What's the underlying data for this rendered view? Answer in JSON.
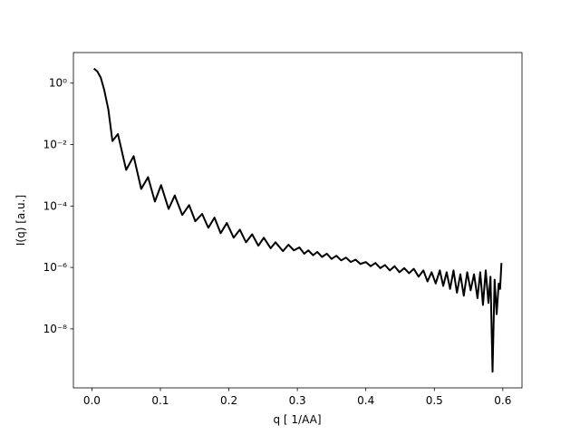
{
  "chart_data": {
    "type": "line",
    "xlabel": "q [ 1/AA]",
    "ylabel": "I(q) [a.u.]",
    "yscale": "log",
    "xlim": [
      -0.027,
      0.628
    ],
    "ylim": [
      1.2e-10,
      9.9
    ],
    "xticks": [
      {
        "value": 0,
        "label": "0.0"
      },
      0.1,
      0.2,
      0.3,
      0.4,
      0.5,
      0.6
    ],
    "yticks": [
      {
        "value": 1,
        "label": "10⁰"
      },
      {
        "value": 0.01,
        "label": "10⁻²"
      },
      {
        "value": 0.0001,
        "label": "10⁻⁴"
      },
      {
        "value": 1e-06,
        "label": "10⁻⁶"
      },
      {
        "value": 1e-08,
        "label": "10⁻⁸"
      }
    ],
    "color": "#000000",
    "x": [
      0.003,
      0.008,
      0.013,
      0.018,
      0.024,
      0.03,
      0.038,
      0.05,
      0.061,
      0.072,
      0.082,
      0.092,
      0.101,
      0.112,
      0.121,
      0.132,
      0.142,
      0.151,
      0.161,
      0.17,
      0.179,
      0.188,
      0.197,
      0.207,
      0.216,
      0.225,
      0.234,
      0.243,
      0.251,
      0.261,
      0.268,
      0.279,
      0.287,
      0.295,
      0.303,
      0.31,
      0.316,
      0.323,
      0.329,
      0.336,
      0.343,
      0.35,
      0.357,
      0.364,
      0.371,
      0.378,
      0.385,
      0.392,
      0.4,
      0.407,
      0.414,
      0.421,
      0.428,
      0.435,
      0.442,
      0.449,
      0.456,
      0.463,
      0.47,
      0.477,
      0.484,
      0.49,
      0.496,
      0.502,
      0.508,
      0.513,
      0.518,
      0.523,
      0.528,
      0.533,
      0.538,
      0.543,
      0.548,
      0.553,
      0.558,
      0.563,
      0.567,
      0.571,
      0.575,
      0.579,
      0.582,
      0.585,
      0.588,
      0.591,
      0.594,
      0.596,
      0.598
    ],
    "values": [
      3.0,
      2.4,
      1.5,
      0.6,
      0.14,
      0.013,
      0.022,
      0.0015,
      0.0042,
      0.00036,
      0.00087,
      0.00014,
      0.00048,
      8e-05,
      0.00022,
      5.1e-05,
      0.000107,
      3.2e-05,
      5.5e-05,
      1.95e-05,
      4.2e-05,
      1.3e-05,
      2.8e-05,
      9.3e-06,
      1.7e-05,
      6.6e-06,
      1.2e-05,
      5.1e-06,
      9.3e-06,
      4.2e-06,
      6.6e-06,
      3.4e-06,
      5.5e-06,
      3.6e-06,
      4.5e-06,
      2.8e-06,
      3.6e-06,
      2.5e-06,
      3.2e-06,
      2.2e-06,
      2.8e-06,
      1.9e-06,
      2.4e-06,
      1.7e-06,
      2.1e-06,
      1.5e-06,
      1.8e-06,
      1.3e-06,
      1.5e-06,
      1.1e-06,
      1.4e-06,
      9.5e-07,
      1.2e-06,
      8e-07,
      1.1e-06,
      7e-07,
      9.5e-07,
      6.5e-07,
      9e-07,
      5e-07,
      8e-07,
      3.5e-07,
      7e-07,
      3e-07,
      8e-07,
      2.5e-07,
      7e-07,
      2e-07,
      8e-07,
      1.5e-07,
      6e-07,
      1.2e-07,
      7e-07,
      1.8e-07,
      6e-07,
      1e-07,
      7e-07,
      6e-08,
      8e-07,
      7e-08,
      5e-07,
      4e-10,
      4e-07,
      3e-08,
      3e-07,
      2e-07,
      1.4e-06
    ]
  }
}
